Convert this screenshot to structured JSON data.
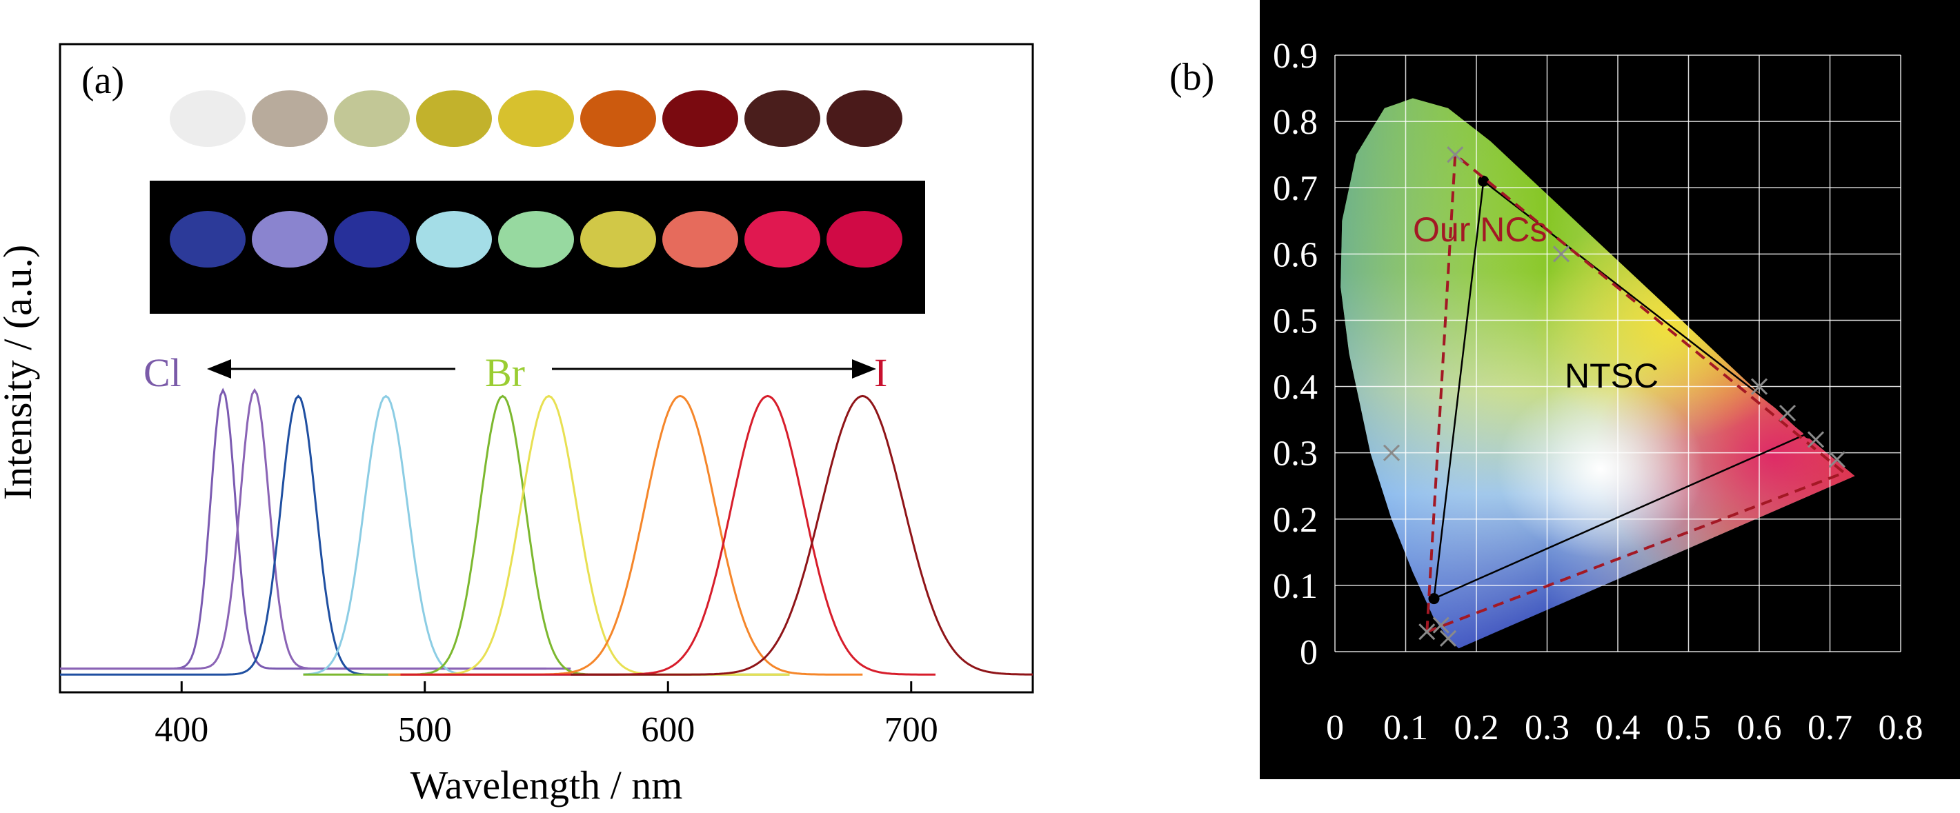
{
  "panel_a": {
    "label": "(a)",
    "photo_row_ambient": [
      "#ededed",
      "#b8ab9c",
      "#c2c796",
      "#c2b22c",
      "#d7c12e",
      "#cc5a0e",
      "#7a0a10",
      "#4a1e1c",
      "#4a1a1a"
    ],
    "photo_row_uv": [
      "#2c3a99",
      "#8a84cf",
      "#27309a",
      "#a4dde7",
      "#97d9a0",
      "#d1c847",
      "#e66b5c",
      "#e01850",
      "#d00a45"
    ],
    "halide_labels": {
      "cl": {
        "text": "Cl",
        "color": "#7a5aa8"
      },
      "br": {
        "text": "Br",
        "color": "#9acd32"
      },
      "i": {
        "text": "I",
        "color": "#c8102e"
      }
    }
  },
  "panel_b": {
    "label": "(b)",
    "our_ncs_label": "Our NCs",
    "ntsc_label": "NTSC",
    "gamut_colors": {
      "our_ncs": "#a31824",
      "ntsc": "#000000",
      "grid": "#ffffff",
      "background": "#000000"
    }
  },
  "chart_data": [
    {
      "type": "line",
      "title": "",
      "xlabel": "Wavelength / nm",
      "ylabel": "Intensity / (a.u.)",
      "xlim": [
        350,
        750
      ],
      "ylim": [
        0,
        1.08
      ],
      "xticks": [
        400,
        500,
        600,
        700
      ],
      "grid": false,
      "series": [
        {
          "peak": 417,
          "fwhm": 12,
          "start": 350,
          "end": 550,
          "baseline": 0.02,
          "color": "#7b5ab1"
        },
        {
          "peak": 430,
          "fwhm": 14,
          "start": 350,
          "end": 560,
          "baseline": 0.02,
          "color": "#8a63b5"
        },
        {
          "peak": 448,
          "fwhm": 17,
          "start": 350,
          "end": 580,
          "baseline": 0.0,
          "color": "#1f4fa1"
        },
        {
          "peak": 484,
          "fwhm": 21,
          "start": 450,
          "end": 650,
          "baseline": 0.0,
          "color": "#8ccde4"
        },
        {
          "peak": 532,
          "fwhm": 22,
          "start": 450,
          "end": 650,
          "baseline": 0.0,
          "color": "#7cb82f"
        },
        {
          "peak": 551,
          "fwhm": 27,
          "start": 485,
          "end": 650,
          "baseline": 0.0,
          "color": "#e8e052"
        },
        {
          "peak": 605,
          "fwhm": 34,
          "start": 485,
          "end": 680,
          "baseline": 0.0,
          "color": "#f5862a"
        },
        {
          "peak": 641,
          "fwhm": 35,
          "start": 490,
          "end": 710,
          "baseline": 0.0,
          "color": "#d71d2b"
        },
        {
          "peak": 680,
          "fwhm": 40,
          "start": 560,
          "end": 750,
          "baseline": 0.0,
          "color": "#8f1418"
        }
      ]
    },
    {
      "type": "scatter",
      "title": "",
      "xlabel": "",
      "ylabel": "",
      "xlim": [
        0,
        0.8
      ],
      "ylim": [
        0,
        0.9
      ],
      "xticks": [
        0,
        0.1,
        0.2,
        0.3,
        0.4,
        0.5,
        0.6,
        0.7,
        0.8
      ],
      "yticks": [
        0,
        0.1,
        0.2,
        0.3,
        0.4,
        0.5,
        0.6,
        0.7,
        0.8,
        0.9
      ],
      "grid": true,
      "ntsc_triangle": [
        [
          0.14,
          0.08
        ],
        [
          0.21,
          0.71
        ],
        [
          0.67,
          0.33
        ]
      ],
      "our_ncs_triangle": [
        [
          0.13,
          0.03
        ],
        [
          0.17,
          0.75
        ],
        [
          0.72,
          0.27
        ]
      ],
      "sample_points": [
        [
          0.13,
          0.03
        ],
        [
          0.15,
          0.04
        ],
        [
          0.16,
          0.02
        ],
        [
          0.17,
          0.75
        ],
        [
          0.32,
          0.6
        ],
        [
          0.6,
          0.4
        ],
        [
          0.64,
          0.36
        ],
        [
          0.68,
          0.32
        ],
        [
          0.71,
          0.29
        ],
        [
          0.08,
          0.3
        ]
      ]
    }
  ]
}
